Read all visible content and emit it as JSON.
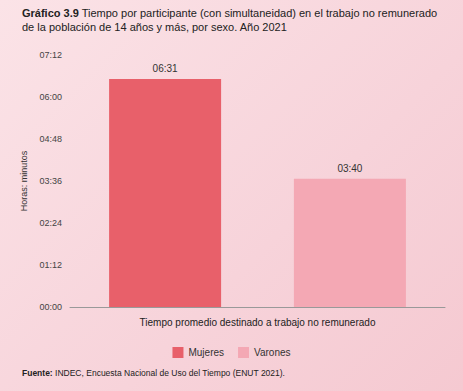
{
  "chart_data": {
    "type": "bar",
    "title": "Gráfico 3.9 Tiempo por participante (con simultaneidad) en el trabajo no remunerado de la población de 14 años y más, por sexo. Año 2021",
    "y_label": "Horas: minutos",
    "source": "Fuente: INDEC, Encuesta Nacional de Uso del Tiempo (ENUT 2021).",
    "categories": [
      "Tiempo promedio destinado a trabajo no remunerado"
    ],
    "series": [
      {
        "name": "Mujeres",
        "color": "#e8606a",
        "values": [
          391
        ],
        "value_labels": [
          "06:31"
        ]
      },
      {
        "name": "Varones",
        "color": "#f4a8b4",
        "values": [
          220
        ],
        "value_labels": [
          "03:40"
        ]
      }
    ],
    "ylim": [
      0,
      432
    ],
    "yticks": [
      {
        "value": 0,
        "label": "00:00"
      },
      {
        "value": 72,
        "label": "01:12"
      },
      {
        "value": 144,
        "label": "02:24"
      },
      {
        "value": 216,
        "label": "03:36"
      },
      {
        "value": 288,
        "label": "04:48"
      },
      {
        "value": 360,
        "label": "06:00"
      },
      {
        "value": 432,
        "label": "07:12"
      }
    ],
    "grid": false,
    "legend": "bottom",
    "data_labels": true
  }
}
